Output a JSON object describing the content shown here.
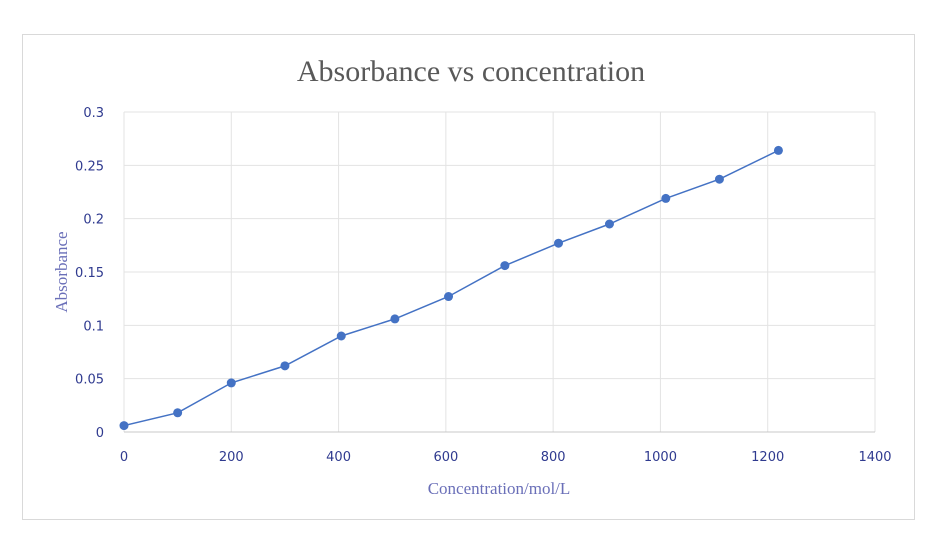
{
  "chart_data": {
    "type": "line",
    "title": "Absorbance vs concentration",
    "xlabel": "Concentration/mol/L",
    "ylabel": "Absorbance",
    "xlim": [
      0,
      1400
    ],
    "ylim": [
      0,
      0.3
    ],
    "x_ticks": [
      "0",
      "200",
      "400",
      "600",
      "800",
      "1000",
      "1200",
      "1400"
    ],
    "y_ticks": [
      "0",
      "0.05",
      "0.1",
      "0.15",
      "0.2",
      "0.25",
      "0.3"
    ],
    "grid": true,
    "legend": "none",
    "series": [
      {
        "x": [
          0,
          100,
          200,
          300,
          405,
          505,
          605,
          710,
          810,
          905,
          1010,
          1110,
          1220
        ],
        "y": [
          0.006,
          0.018,
          0.046,
          0.062,
          0.09,
          0.106,
          0.127,
          0.156,
          0.177,
          0.195,
          0.219,
          0.237,
          0.264
        ],
        "color": "#4472c4"
      }
    ]
  }
}
